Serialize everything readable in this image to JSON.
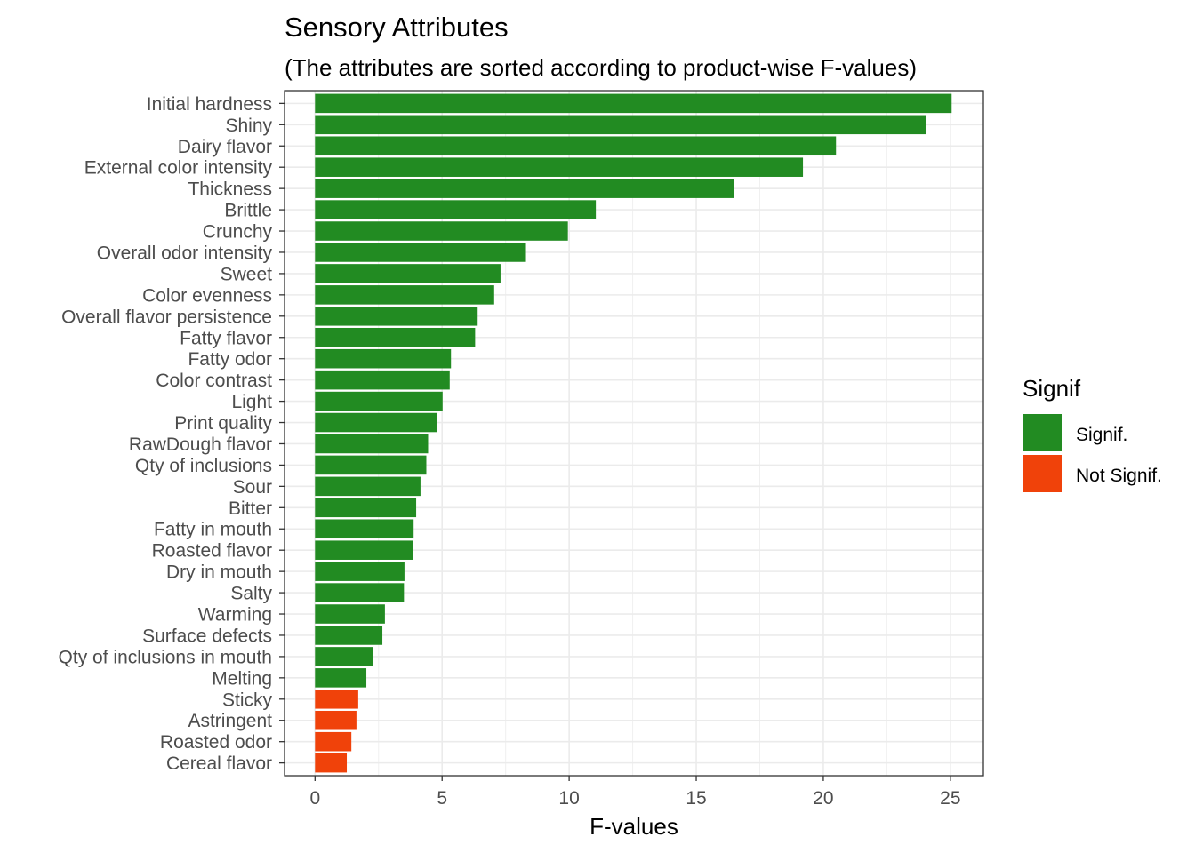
{
  "chart_data": {
    "type": "bar",
    "orientation": "horizontal",
    "title": "Sensory Attributes",
    "subtitle": "(The attributes are sorted according to product-wise F-values)",
    "xlabel": "F-values",
    "ylabel": "",
    "xlim": [
      -1.2,
      26.3
    ],
    "xticks": [
      0,
      5,
      10,
      15,
      20,
      25
    ],
    "grid": true,
    "legend": {
      "title": "Signif",
      "placement": "right",
      "entries": [
        {
          "key": "signif",
          "label": "Signif.",
          "color": "#228B22"
        },
        {
          "key": "not_signif",
          "label": "Not Signif.",
          "color": "#F0420A"
        }
      ]
    },
    "categories": [
      "Initial hardness",
      "Shiny",
      "Dairy flavor",
      "External color intensity",
      "Thickness",
      "Brittle",
      "Crunchy",
      "Overall odor intensity",
      "Sweet",
      "Color evenness",
      "Overall flavor persistence",
      "Fatty flavor",
      "Fatty odor",
      "Color contrast",
      "Light",
      "Print quality",
      "RawDough flavor",
      "Qty of inclusions",
      "Sour",
      "Bitter",
      "Fatty in mouth",
      "Roasted flavor",
      "Dry in mouth",
      "Salty",
      "Warming",
      "Surface defects",
      "Qty of inclusions in mouth",
      "Melting",
      "Sticky",
      "Astringent",
      "Roasted odor",
      "Cereal flavor"
    ],
    "values": [
      25.05,
      24.05,
      20.5,
      19.2,
      16.5,
      11.05,
      9.95,
      8.3,
      7.3,
      7.05,
      6.4,
      6.3,
      5.35,
      5.3,
      5.02,
      4.8,
      4.45,
      4.38,
      4.15,
      3.98,
      3.88,
      3.85,
      3.52,
      3.5,
      2.75,
      2.65,
      2.27,
      2.02,
      1.7,
      1.63,
      1.43,
      1.25
    ],
    "significance": [
      "signif",
      "signif",
      "signif",
      "signif",
      "signif",
      "signif",
      "signif",
      "signif",
      "signif",
      "signif",
      "signif",
      "signif",
      "signif",
      "signif",
      "signif",
      "signif",
      "signif",
      "signif",
      "signif",
      "signif",
      "signif",
      "signif",
      "signif",
      "signif",
      "signif",
      "signif",
      "signif",
      "signif",
      "not_signif",
      "not_signif",
      "not_signif",
      "not_signif"
    ]
  }
}
